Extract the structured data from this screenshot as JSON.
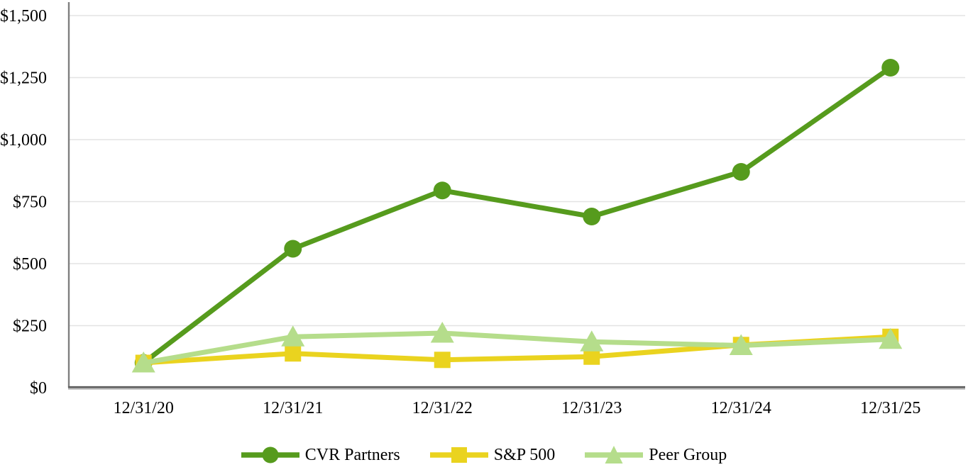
{
  "chart_data": {
    "type": "line",
    "title": "",
    "xlabel": "",
    "ylabel": "",
    "categories": [
      "12/31/20",
      "12/31/21",
      "12/31/22",
      "12/31/23",
      "12/31/24",
      "12/31/25"
    ],
    "series": [
      {
        "name": "CVR Partners",
        "marker": "circle",
        "color": "#569B1D",
        "values": [
          100,
          560,
          795,
          690,
          870,
          1290
        ]
      },
      {
        "name": "S&P 500",
        "marker": "square",
        "color": "#EAD31F",
        "values": [
          100,
          138,
          112,
          125,
          172,
          205
        ]
      },
      {
        "name": "Peer Group",
        "marker": "triangle",
        "color": "#B5DD8B",
        "values": [
          100,
          205,
          220,
          185,
          170,
          195
        ]
      }
    ],
    "y_axis": {
      "min": 0,
      "max": 1500,
      "tick_interval": 250,
      "tick_values": [
        0,
        250,
        500,
        750,
        1000,
        1250,
        1500
      ],
      "tick_labels": [
        "$0",
        "$250",
        "$500",
        "$750",
        "$1,000",
        "$1,250",
        "$1,500"
      ]
    },
    "legend_position": "bottom",
    "grid": "horizontal-only",
    "colors": {
      "gridline": "#e3e3e3",
      "y_axis_line": "#7f7f7f",
      "x_axis_line": "#5f5f5f",
      "x_axis_shadow": "#b9b9b9",
      "text": "#000000"
    }
  }
}
